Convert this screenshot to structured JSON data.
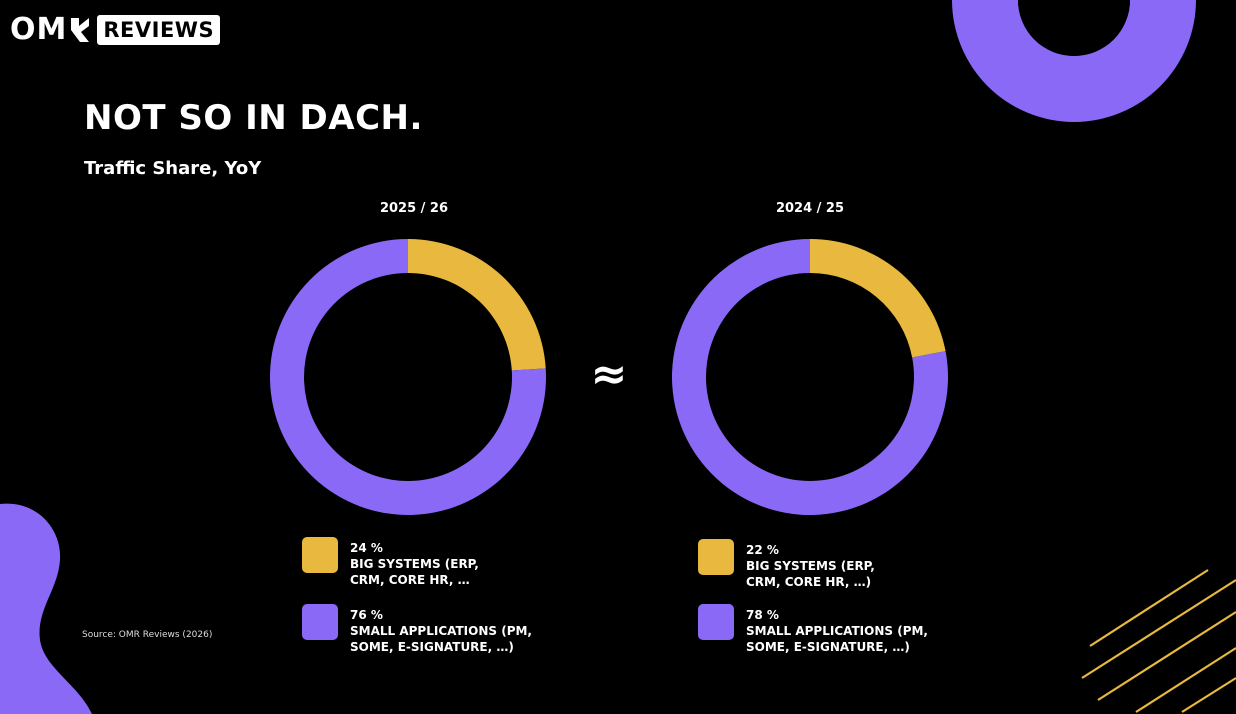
{
  "brand": {
    "omr": "OM",
    "reviews": "REVIEWS"
  },
  "title": "NOT SO IN DACH.",
  "subtitle": "Traffic Share, YoY",
  "approx_symbol": "≈",
  "source": "Source: OMR Reviews (2026)",
  "colors": {
    "background": "#000000",
    "big": "#E8B93E",
    "small": "#8B69F7",
    "text": "#FFFFFF"
  },
  "chart_data": [
    {
      "type": "pie",
      "title": "2025 / 26",
      "series": [
        {
          "name": "BIG SYSTEMS (ERP, CRM, CORE HR, …",
          "value": 24,
          "label": "24 %",
          "color": "#E8B93E",
          "line1": "BIG SYSTEMS (ERP,",
          "line2": "CRM, CORE HR, …"
        },
        {
          "name": "SMALL APPLICATIONS (PM, SOME, E-SIGNATURE, …)",
          "value": 76,
          "label": "76 %",
          "color": "#8B69F7",
          "line1": "SMALL APPLICATIONS (PM,",
          "line2": "SOME, E-SIGNATURE, …)"
        }
      ]
    },
    {
      "type": "pie",
      "title": "2024 / 25",
      "series": [
        {
          "name": "BIG SYSTEMS (ERP, CRM, CORE HR, …)",
          "value": 22,
          "label": "22 %",
          "color": "#E8B93E",
          "line1": "BIG SYSTEMS (ERP,",
          "line2": "CRM, CORE HR, …)"
        },
        {
          "name": "SMALL APPLICATIONS (PM, SOME, E-SIGNATURE, …)",
          "value": 78,
          "label": "78 %",
          "color": "#8B69F7",
          "line1": "SMALL APPLICATIONS (PM,",
          "line2": "SOME, E-SIGNATURE, …)"
        }
      ]
    }
  ]
}
